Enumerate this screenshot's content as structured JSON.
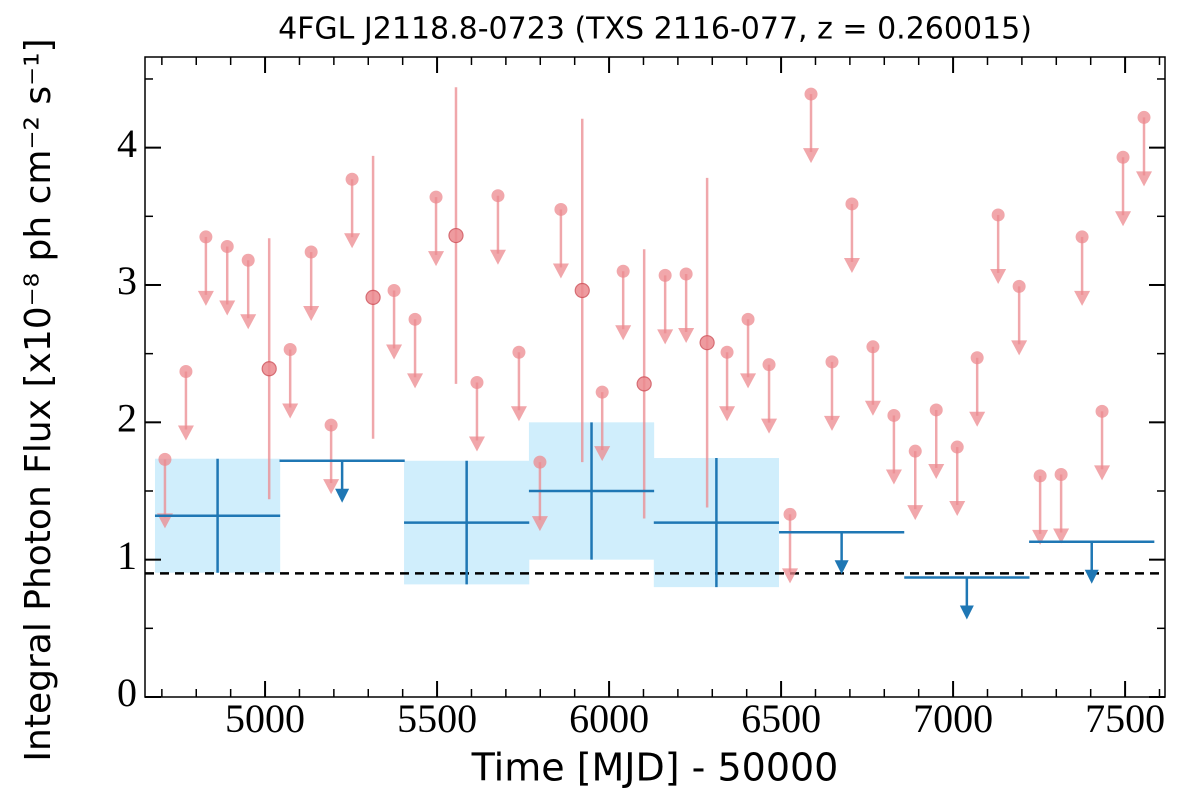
{
  "chart_data": {
    "type": "errorbar",
    "title": "4FGL J2118.8-0723 (TXS 2116-077, z = 0.260015)",
    "xlabel": "Time [MJD] - 50000",
    "ylabel": "Integral Photon Flux [x10⁻⁸ ph cm⁻² s⁻¹]",
    "xlim": [
      4651,
      7616
    ],
    "ylim": [
      0,
      4.66
    ],
    "xticks": [
      5000,
      5500,
      6000,
      6500,
      7000,
      7500
    ],
    "yticks": [
      0,
      1,
      2,
      3,
      4
    ],
    "xminorticks": [
      4700,
      4800,
      4900,
      5100,
      5200,
      5300,
      5400,
      5600,
      5700,
      5800,
      5900,
      6100,
      6200,
      6300,
      6400,
      6600,
      6700,
      6800,
      6900,
      7100,
      7200,
      7300,
      7400,
      7600
    ],
    "yminorticks": [
      0.5,
      1.5,
      2.5,
      3.5,
      4.5
    ],
    "hline": {
      "value": 0.9,
      "color": "#000000"
    },
    "series": [
      {
        "color": "#ec8a8f",
        "x": [
          4709,
          4770,
          4828,
          4890,
          4951,
          5012,
          5073,
          5134,
          5192,
          5253,
          5314,
          5375,
          5436,
          5497,
          5555,
          5616,
          5677,
          5738,
          5799,
          5860,
          5922,
          5980,
          6041,
          6102,
          6163,
          6224,
          6285,
          6343,
          6404,
          6465,
          6526,
          6587,
          6648,
          6706,
          6767,
          6828,
          6890,
          6951,
          7012,
          7070,
          7131,
          7192,
          7253,
          7314,
          7375,
          7433,
          7494,
          7555
        ],
        "values": [
          1.73,
          2.37,
          3.35,
          3.28,
          3.18,
          2.39,
          2.53,
          3.24,
          1.98,
          3.77,
          2.91,
          2.96,
          2.75,
          3.64,
          3.36,
          2.29,
          3.65,
          2.51,
          1.71,
          3.55,
          2.96,
          2.22,
          3.1,
          2.28,
          3.07,
          3.08,
          2.58,
          2.51,
          2.75,
          2.42,
          1.33,
          4.39,
          2.44,
          3.59,
          2.55,
          2.05,
          1.79,
          2.09,
          1.82,
          2.47,
          3.51,
          2.99,
          1.61,
          1.62,
          3.35,
          2.08,
          3.93,
          4.22
        ],
        "errors": [
          null,
          null,
          null,
          null,
          null,
          0.95,
          null,
          null,
          null,
          null,
          1.03,
          null,
          null,
          null,
          1.08,
          null,
          null,
          null,
          null,
          null,
          1.25,
          null,
          null,
          0.98,
          null,
          null,
          1.2,
          null,
          null,
          null,
          null,
          null,
          null,
          null,
          null,
          null,
          null,
          null,
          null,
          null,
          null,
          null,
          null,
          null,
          null,
          null,
          null,
          null
        ],
        "upper_limit": [
          true,
          true,
          true,
          true,
          true,
          false,
          true,
          true,
          true,
          true,
          false,
          true,
          true,
          true,
          false,
          true,
          true,
          true,
          true,
          true,
          false,
          true,
          true,
          false,
          true,
          true,
          false,
          true,
          true,
          true,
          true,
          true,
          true,
          true,
          true,
          true,
          true,
          true,
          true,
          true,
          true,
          true,
          true,
          true,
          true,
          true,
          true,
          true
        ]
      },
      {
        "color": "#1f77b4",
        "band_color": "#d0eefc",
        "x": [
          4862,
          5224,
          5586,
          5949,
          6312,
          6676,
          7040,
          7403
        ],
        "xerr": [
          182,
          182,
          182,
          182,
          182,
          182,
          182,
          182
        ],
        "values": [
          1.32,
          1.72,
          1.27,
          1.5,
          1.27,
          1.2,
          0.87,
          1.13
        ],
        "errors": [
          0.415,
          null,
          0.45,
          0.5,
          0.47,
          null,
          null,
          null
        ],
        "upper_limit": [
          false,
          true,
          false,
          false,
          false,
          true,
          true,
          true
        ]
      }
    ]
  }
}
